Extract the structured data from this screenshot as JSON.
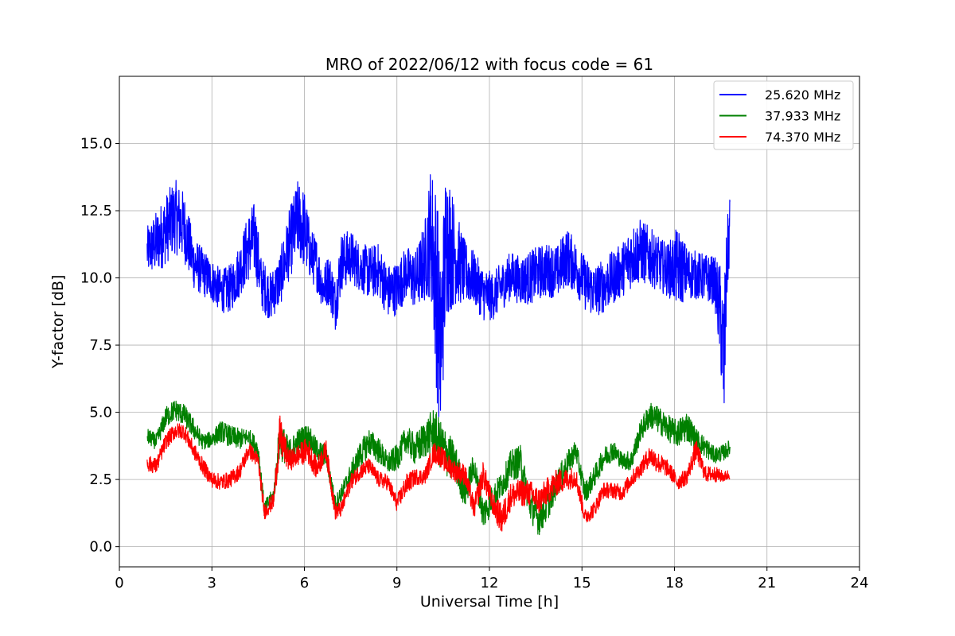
{
  "chart_data": {
    "type": "line",
    "title": "MRO of 2022/06/12 with focus code = 61",
    "xlabel": "Universal Time [h]",
    "ylabel": "Y-factor [dB]",
    "xlim": [
      0,
      24
    ],
    "ylim": [
      -0.75,
      17.5
    ],
    "xticks": [
      0,
      3,
      6,
      9,
      12,
      15,
      18,
      21,
      24
    ],
    "xtick_labels": [
      "0",
      "3",
      "6",
      "9",
      "12",
      "15",
      "18",
      "21",
      "24"
    ],
    "yticks": [
      0,
      2.5,
      5,
      7.5,
      10,
      12.5,
      15
    ],
    "ytick_labels": [
      "0.0",
      "2.5",
      "5.0",
      "7.5",
      "10.0",
      "12.5",
      "15.0"
    ],
    "grid": true,
    "legend_position": "top-right",
    "series": [
      {
        "name": "25.620 MHz",
        "color": "#0000ff",
        "x": [
          0.9,
          1.2,
          1.5,
          1.8,
          2.1,
          2.4,
          2.7,
          3.0,
          3.3,
          3.6,
          3.9,
          4.2,
          4.4,
          4.6,
          4.9,
          5.2,
          5.5,
          5.8,
          6.0,
          6.2,
          6.4,
          6.6,
          6.8,
          7.0,
          7.2,
          7.5,
          7.8,
          8.1,
          8.4,
          8.7,
          9.0,
          9.3,
          9.6,
          9.9,
          10.1,
          10.3,
          10.4,
          10.6,
          10.9,
          11.2,
          11.5,
          11.8,
          12.1,
          12.4,
          12.7,
          13.0,
          13.3,
          13.6,
          13.9,
          14.2,
          14.5,
          14.8,
          15.1,
          15.4,
          15.7,
          16.0,
          16.3,
          16.6,
          16.9,
          17.2,
          17.5,
          17.8,
          18.1,
          18.4,
          18.7,
          19.0,
          19.3,
          19.5,
          19.6,
          19.7,
          19.8
        ],
        "values": [
          11.0,
          11.3,
          11.8,
          12.3,
          11.9,
          10.6,
          10.2,
          9.9,
          9.5,
          9.6,
          10.3,
          11.2,
          11.5,
          9.8,
          9.3,
          9.9,
          11.2,
          12.2,
          11.8,
          10.9,
          10.5,
          9.6,
          10.0,
          9.0,
          10.6,
          10.8,
          10.4,
          10.2,
          10.3,
          9.5,
          9.6,
          10.2,
          9.9,
          10.6,
          11.8,
          9.5,
          7.0,
          11.5,
          10.8,
          10.2,
          10.0,
          9.4,
          9.3,
          9.7,
          10.1,
          9.9,
          10.0,
          10.2,
          10.3,
          10.2,
          10.8,
          10.4,
          9.8,
          9.5,
          9.7,
          10.0,
          10.3,
          10.8,
          11.0,
          10.8,
          10.5,
          10.3,
          10.4,
          10.2,
          10.1,
          10.0,
          9.9,
          8.5,
          6.5,
          10.5,
          12.0
        ],
        "amplitude": [
          0.9,
          1.2,
          1.3,
          1.4,
          1.3,
          1.0,
          0.9,
          0.8,
          0.8,
          0.9,
          1.0,
          1.3,
          1.4,
          1.0,
          0.9,
          1.0,
          1.3,
          1.5,
          1.5,
          1.0,
          1.0,
          0.8,
          1.0,
          1.0,
          1.1,
          1.0,
          0.9,
          1.0,
          1.0,
          1.0,
          1.0,
          1.0,
          1.1,
          1.5,
          2.5,
          4.0,
          3.5,
          3.0,
          1.8,
          1.2,
          1.0,
          1.0,
          0.9,
          0.9,
          0.9,
          0.9,
          1.0,
          1.0,
          1.0,
          1.0,
          1.1,
          1.0,
          1.0,
          1.0,
          1.0,
          1.0,
          1.0,
          1.2,
          1.2,
          1.1,
          1.0,
          1.0,
          1.5,
          1.0,
          0.9,
          0.9,
          0.9,
          2.0,
          3.0,
          1.5,
          1.3
        ]
      },
      {
        "name": "37.933 MHz",
        "color": "#008000",
        "x": [
          0.9,
          1.2,
          1.5,
          1.8,
          2.1,
          2.4,
          2.7,
          3.0,
          3.3,
          3.6,
          3.9,
          4.2,
          4.5,
          4.7,
          5.0,
          5.2,
          5.5,
          5.8,
          6.1,
          6.4,
          6.7,
          7.0,
          7.2,
          7.5,
          7.8,
          8.1,
          8.4,
          8.7,
          9.0,
          9.3,
          9.6,
          9.9,
          10.2,
          10.4,
          10.6,
          10.9,
          11.2,
          11.5,
          11.8,
          12.1,
          12.4,
          12.7,
          13.0,
          13.3,
          13.6,
          13.9,
          14.2,
          14.5,
          14.8,
          15.1,
          15.4,
          15.7,
          16.0,
          16.3,
          16.6,
          16.9,
          17.2,
          17.5,
          17.8,
          18.1,
          18.4,
          18.7,
          19.0,
          19.3,
          19.6,
          19.8
        ],
        "values": [
          4.1,
          3.9,
          4.8,
          5.1,
          4.9,
          4.4,
          3.9,
          4.0,
          4.3,
          4.1,
          4.0,
          4.1,
          3.6,
          1.4,
          1.9,
          4.0,
          3.5,
          3.9,
          4.1,
          3.6,
          3.4,
          1.6,
          2.0,
          2.7,
          3.4,
          3.9,
          3.6,
          3.1,
          3.3,
          4.0,
          3.6,
          4.0,
          4.3,
          3.8,
          3.5,
          3.1,
          2.0,
          3.0,
          1.2,
          1.8,
          2.3,
          3.0,
          3.2,
          1.6,
          1.0,
          1.6,
          2.4,
          3.0,
          3.6,
          2.0,
          2.6,
          3.3,
          3.6,
          3.2,
          3.2,
          4.3,
          4.9,
          4.7,
          4.4,
          4.2,
          4.5,
          4.0,
          3.7,
          3.4,
          3.5,
          3.7
        ],
        "amplitude": [
          0.3,
          0.3,
          0.4,
          0.4,
          0.4,
          0.4,
          0.3,
          0.3,
          0.4,
          0.4,
          0.4,
          0.3,
          0.4,
          0.3,
          0.3,
          0.8,
          0.5,
          0.5,
          0.5,
          0.4,
          0.4,
          0.3,
          0.3,
          0.4,
          0.5,
          0.5,
          0.5,
          0.4,
          0.5,
          0.5,
          0.6,
          0.7,
          0.9,
          0.9,
          0.9,
          0.7,
          0.6,
          0.5,
          0.6,
          0.5,
          0.5,
          0.6,
          0.6,
          0.6,
          0.6,
          0.6,
          0.5,
          0.5,
          0.4,
          0.4,
          0.4,
          0.4,
          0.4,
          0.3,
          0.4,
          0.4,
          0.5,
          0.5,
          0.5,
          0.5,
          0.6,
          0.4,
          0.4,
          0.3,
          0.3,
          0.3
        ]
      },
      {
        "name": "74.370 MHz",
        "color": "#ff0000",
        "x": [
          0.9,
          1.2,
          1.5,
          1.8,
          2.1,
          2.4,
          2.7,
          3.0,
          3.3,
          3.6,
          3.9,
          4.2,
          4.5,
          4.7,
          5.0,
          5.2,
          5.5,
          5.8,
          6.1,
          6.4,
          6.7,
          7.0,
          7.2,
          7.5,
          7.8,
          8.1,
          8.4,
          8.7,
          9.0,
          9.3,
          9.6,
          9.9,
          10.2,
          10.4,
          10.6,
          10.9,
          11.2,
          11.5,
          11.8,
          12.1,
          12.4,
          12.7,
          13.0,
          13.3,
          13.6,
          13.9,
          14.2,
          14.5,
          14.8,
          15.1,
          15.4,
          15.7,
          16.0,
          16.3,
          16.6,
          16.9,
          17.2,
          17.5,
          17.8,
          18.1,
          18.4,
          18.7,
          19.0,
          19.3,
          19.6,
          19.8
        ],
        "values": [
          3.1,
          3.0,
          3.9,
          4.3,
          4.3,
          3.6,
          3.0,
          2.5,
          2.4,
          2.5,
          2.8,
          3.6,
          3.2,
          1.3,
          1.7,
          4.1,
          3.2,
          3.4,
          3.6,
          2.9,
          3.6,
          1.3,
          1.4,
          2.4,
          2.8,
          3.0,
          2.5,
          2.4,
          1.6,
          2.3,
          2.6,
          2.6,
          3.5,
          3.4,
          3.1,
          2.8,
          2.7,
          1.4,
          2.7,
          1.6,
          1.0,
          1.9,
          2.0,
          2.0,
          1.7,
          2.1,
          2.4,
          2.5,
          2.6,
          1.1,
          1.4,
          2.1,
          2.1,
          2.0,
          2.5,
          2.9,
          3.4,
          3.1,
          2.9,
          2.4,
          2.6,
          3.6,
          2.7,
          2.7,
          2.6,
          2.7
        ],
        "amplitude": [
          0.3,
          0.3,
          0.3,
          0.3,
          0.3,
          0.3,
          0.3,
          0.3,
          0.3,
          0.3,
          0.3,
          0.3,
          0.3,
          0.3,
          0.3,
          0.8,
          0.4,
          0.4,
          0.5,
          0.4,
          0.4,
          0.3,
          0.3,
          0.3,
          0.3,
          0.3,
          0.3,
          0.3,
          0.3,
          0.4,
          0.3,
          0.3,
          0.4,
          0.4,
          0.4,
          0.4,
          0.4,
          0.4,
          0.5,
          0.4,
          0.6,
          0.5,
          0.5,
          0.5,
          0.5,
          0.5,
          0.5,
          0.4,
          0.4,
          0.3,
          0.3,
          0.3,
          0.3,
          0.3,
          0.3,
          0.3,
          0.4,
          0.4,
          0.3,
          0.3,
          0.3,
          0.4,
          0.3,
          0.3,
          0.2,
          0.2
        ]
      }
    ]
  }
}
